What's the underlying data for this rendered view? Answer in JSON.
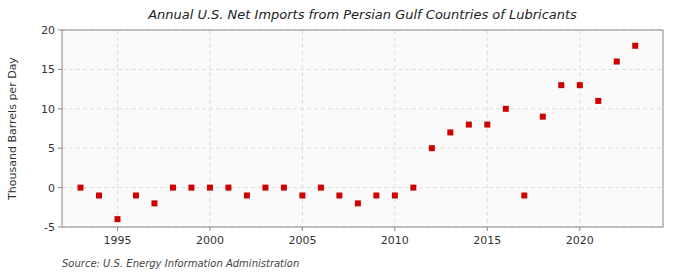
{
  "chart_data": {
    "type": "scatter",
    "title": "Annual U.S. Net Imports from Persian Gulf Countries of Lubricants",
    "y_label": "Thousand Barrels per Day",
    "annotations": [
      "Source: U.S. Energy Information Administration"
    ],
    "x": [
      1993,
      1994,
      1995,
      1996,
      1997,
      1998,
      1999,
      2000,
      2001,
      2002,
      2003,
      2004,
      2005,
      2006,
      2007,
      2008,
      2009,
      2010,
      2011,
      2012,
      2013,
      2014,
      2015,
      2016,
      2017,
      2018,
      2019,
      2020,
      2021,
      2022,
      2023
    ],
    "values": [
      0,
      -1,
      -4,
      -1,
      -2,
      0,
      0,
      0,
      0,
      -1,
      0,
      0,
      -1,
      0,
      -1,
      -2,
      -1,
      -1,
      0,
      5,
      7,
      8,
      8,
      10,
      -1,
      9,
      13,
      13,
      11,
      16,
      18
    ],
    "color": "#cc0000",
    "marker": "square",
    "xlim": [
      1992,
      2024.5
    ],
    "ylim": [
      -5,
      20
    ],
    "xticks": [
      1995,
      2000,
      2005,
      2010,
      2015,
      2020
    ],
    "yticks": [
      -5,
      0,
      5,
      10,
      15,
      20
    ],
    "grid": true
  }
}
